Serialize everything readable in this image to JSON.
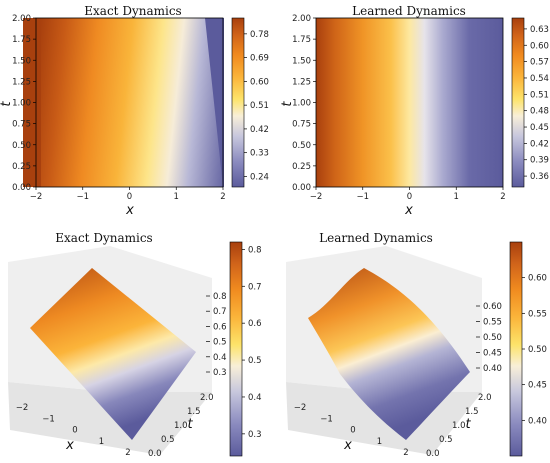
{
  "colors": {
    "colormap": [
      "#5b5b9c",
      "#8b8bbf",
      "#c7c7dd",
      "#fbf0d2",
      "#fde36a",
      "#fbb43a",
      "#f08a1f",
      "#d0631a",
      "#a8400e"
    ],
    "pane": "#ebebeb",
    "pane_light": "#f4f4f4"
  },
  "chart_data": [
    {
      "panel": "top-left",
      "type": "heatmap",
      "title": "Exact Dynamics",
      "xlabel": "x",
      "ylabel": "t",
      "xlim": [
        -2,
        2
      ],
      "ylim": [
        0,
        2
      ],
      "x_ticks": [
        "−2",
        "−1",
        "0",
        "1",
        "2"
      ],
      "y_ticks": [
        "0.00",
        "0.25",
        "0.50",
        "0.75",
        "1.00",
        "1.25",
        "1.50",
        "1.75",
        "2.00"
      ],
      "colorbar_ticks": [
        "0.24",
        "0.33",
        "0.42",
        "0.51",
        "0.60",
        "0.69",
        "0.78"
      ],
      "value_range": [
        0.2,
        0.84
      ]
    },
    {
      "panel": "top-right",
      "type": "heatmap",
      "title": "Learned Dynamics",
      "xlabel": "x",
      "ylabel": "t",
      "xlim": [
        -2,
        2
      ],
      "ylim": [
        0,
        2
      ],
      "x_ticks": [
        "−2",
        "−1",
        "0",
        "1",
        "2"
      ],
      "y_ticks": [
        "0.00",
        "0.25",
        "0.50",
        "0.75",
        "1.00",
        "1.25",
        "1.50",
        "1.75",
        "2.00"
      ],
      "colorbar_ticks": [
        "0.36",
        "0.39",
        "0.42",
        "0.45",
        "0.48",
        "0.51",
        "0.54",
        "0.57",
        "0.60",
        "0.63"
      ],
      "value_range": [
        0.34,
        0.65
      ]
    },
    {
      "panel": "bottom-left",
      "type": "surface3d",
      "title": "Exact Dynamics",
      "xlabel": "x",
      "ylabel": "t",
      "x_ticks": [
        "−2",
        "−1",
        "0",
        "1",
        "2"
      ],
      "t_ticks": [
        "0.0",
        "0.5",
        "1.0",
        "1.5",
        "2.0"
      ],
      "z_ticks": [
        "0.3",
        "0.4",
        "0.5",
        "0.6",
        "0.7",
        "0.8"
      ],
      "colorbar_ticks": [
        "0.3",
        "0.4",
        "0.5",
        "0.6",
        "0.7",
        "0.8"
      ],
      "value_range": [
        0.24,
        0.82
      ]
    },
    {
      "panel": "bottom-right",
      "type": "surface3d",
      "title": "Learned Dynamics",
      "xlabel": "x",
      "ylabel": "t",
      "x_ticks": [
        "−2",
        "−1",
        "0",
        "1",
        "2"
      ],
      "t_ticks": [
        "0.0",
        "0.5",
        "1.0",
        "1.5",
        "2.0"
      ],
      "z_ticks": [
        "0.40",
        "0.45",
        "0.50",
        "0.55",
        "0.60"
      ],
      "colorbar_ticks": [
        "0.40",
        "0.45",
        "0.50",
        "0.55",
        "0.60"
      ],
      "value_range": [
        0.35,
        0.65
      ]
    }
  ]
}
